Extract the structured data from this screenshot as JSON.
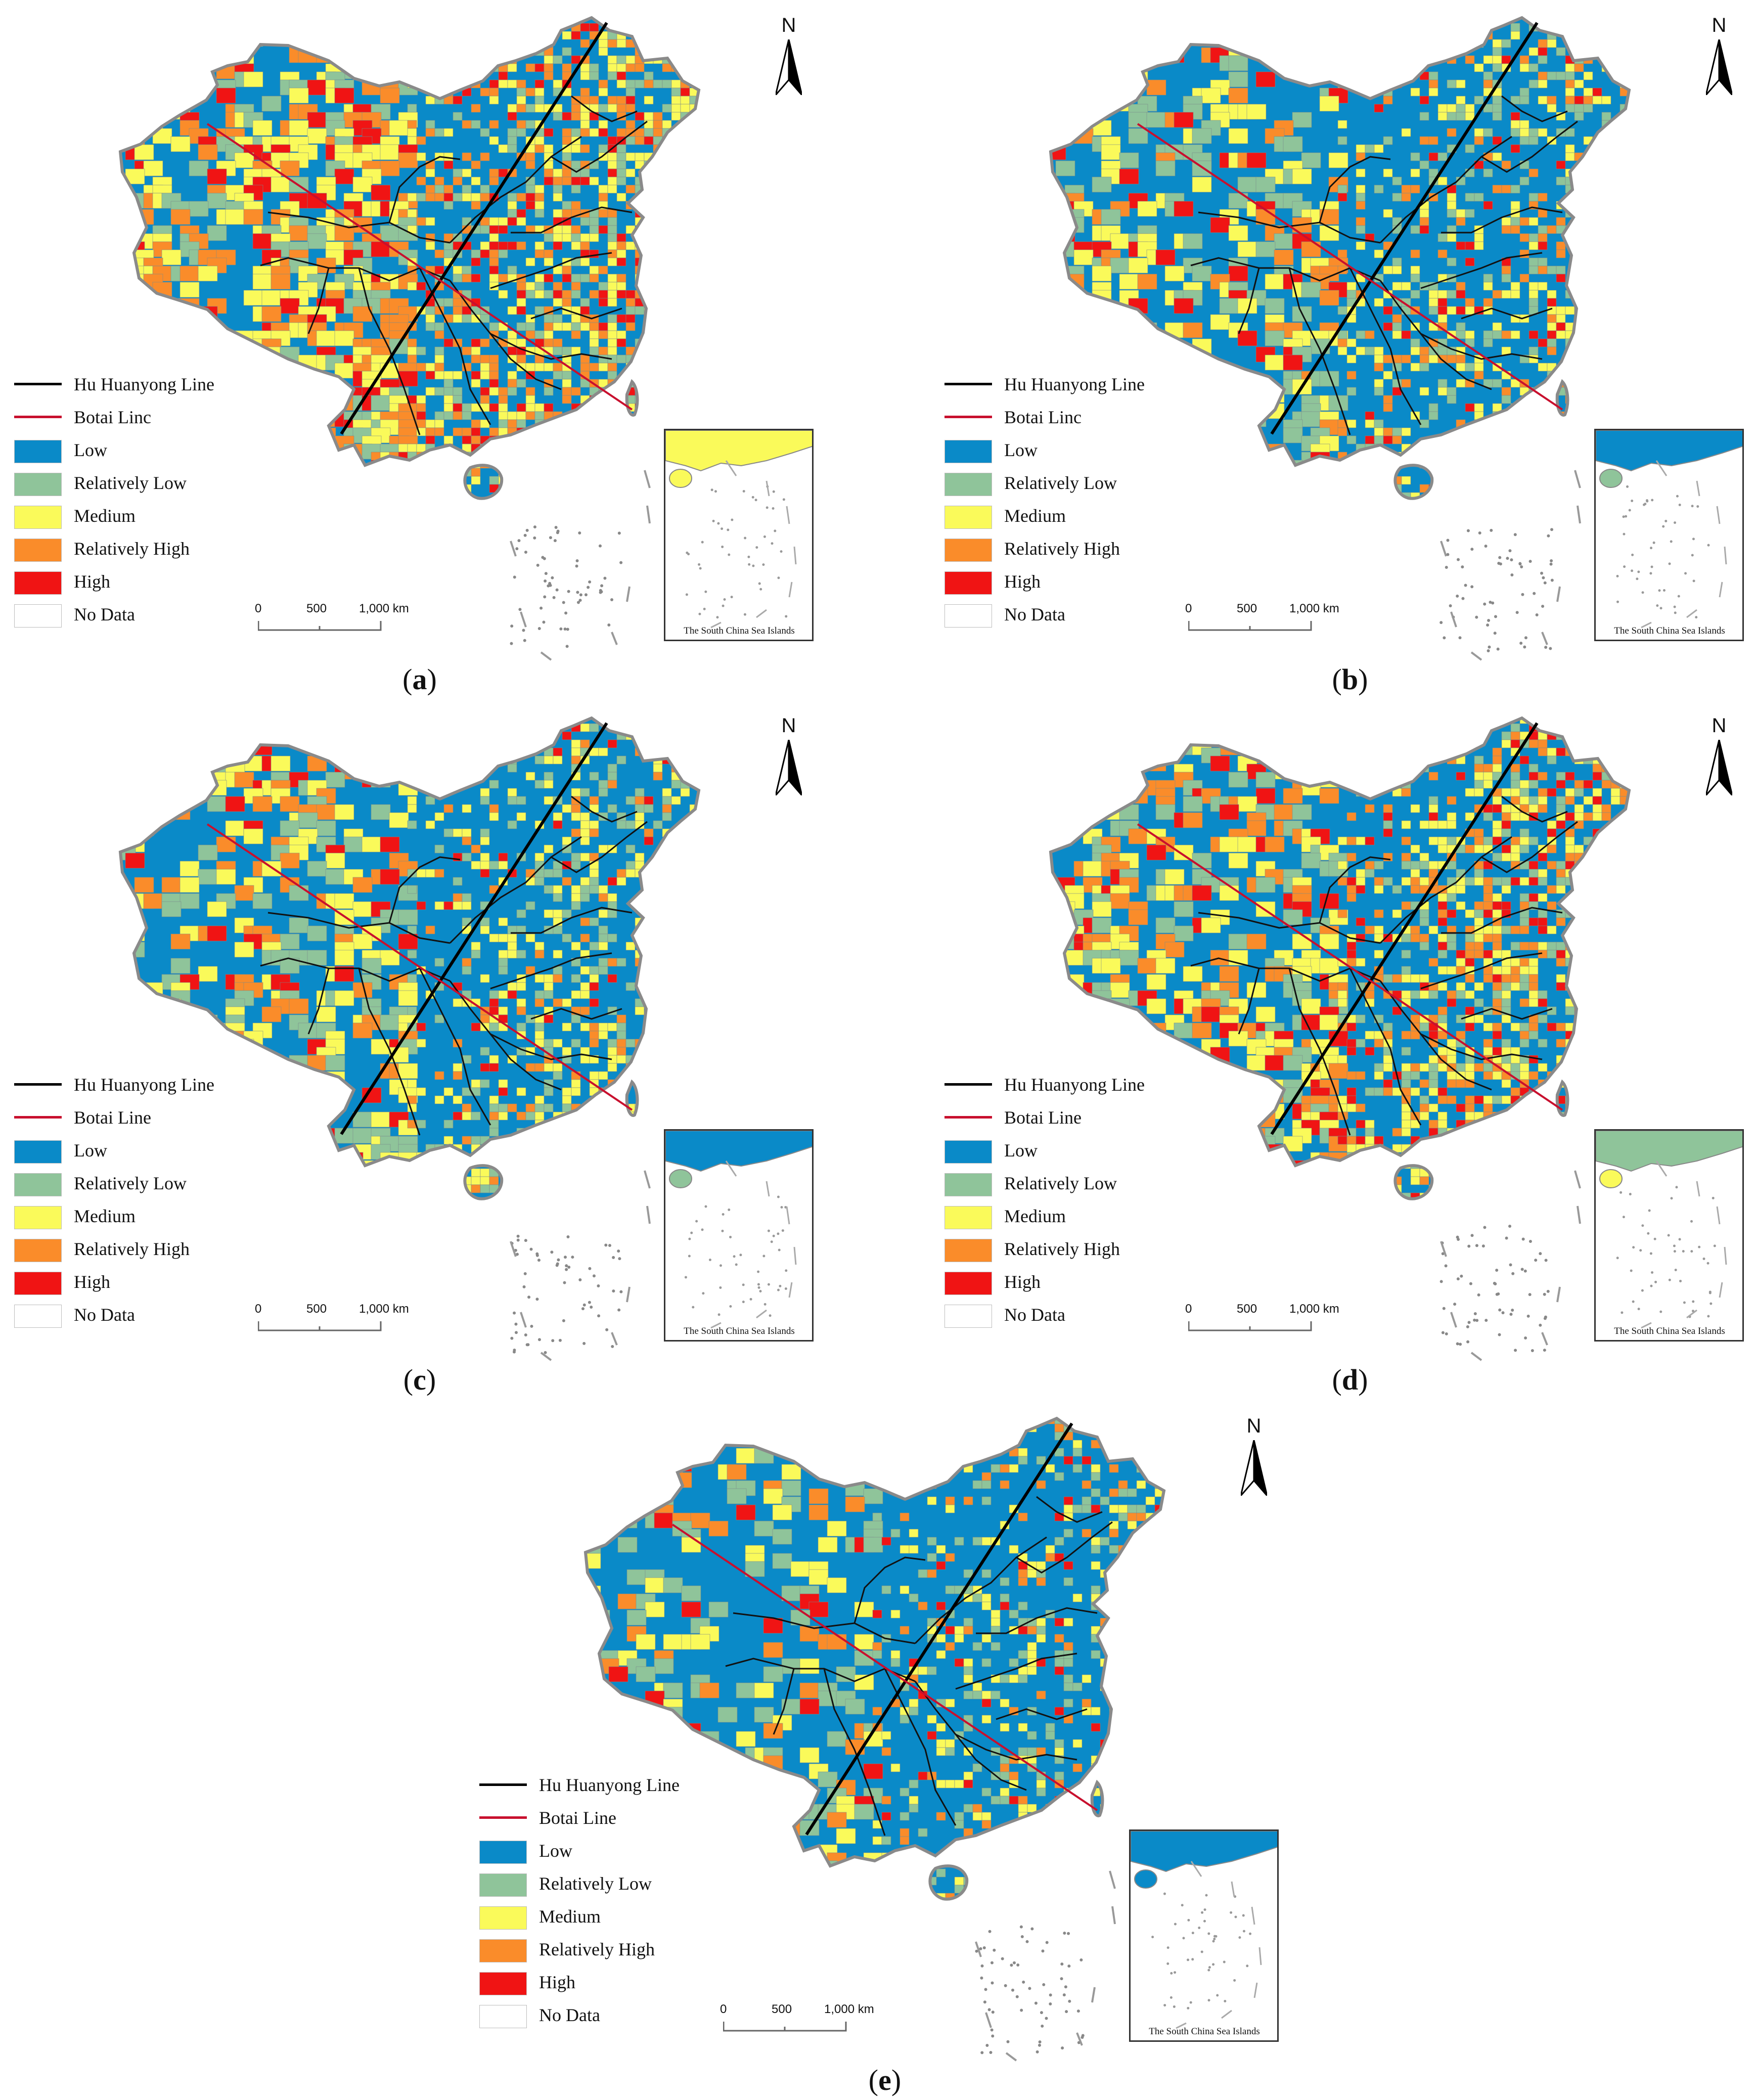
{
  "legend": {
    "lines": [
      {
        "label": "Hu Huanyong Line",
        "color": "#000000"
      },
      {
        "label": "Botai Line",
        "color": "#c8102e"
      }
    ],
    "classes": [
      {
        "label": "Low",
        "color": "#0a8ac8"
      },
      {
        "label": "Relatively Low",
        "color": "#8fc49a"
      },
      {
        "label": "Medium",
        "color": "#fafa5a"
      },
      {
        "label": "Relatively High",
        "color": "#fa8c2a"
      },
      {
        "label": "High",
        "color": "#f01414"
      },
      {
        "label": "No Data",
        "color": "#ffffff"
      }
    ]
  },
  "north_label": "N",
  "scale_ticks": [
    "0",
    "500",
    "1,000 km"
  ],
  "inset_label": "The South China Sea Islands",
  "panels": [
    {
      "id": "a",
      "letter": "a",
      "botai_label": "Botai Linc",
      "class_shares": {
        "Low": 0.34,
        "Relatively Low": 0.14,
        "Medium": 0.22,
        "Relatively High": 0.2,
        "High": 0.1
      }
    },
    {
      "id": "b",
      "letter": "b",
      "botai_label": "Botai Linc",
      "class_shares": {
        "Low": 0.55,
        "Relatively Low": 0.16,
        "Medium": 0.15,
        "Relatively High": 0.09,
        "High": 0.05
      }
    },
    {
      "id": "c",
      "letter": "c",
      "botai_label": "Botai Line",
      "class_shares": {
        "Low": 0.58,
        "Relatively Low": 0.14,
        "Medium": 0.16,
        "Relatively High": 0.08,
        "High": 0.04
      }
    },
    {
      "id": "d",
      "letter": "d",
      "botai_label": "Botai Line",
      "class_shares": {
        "Low": 0.4,
        "Relatively Low": 0.14,
        "Medium": 0.2,
        "Relatively High": 0.17,
        "High": 0.09
      }
    },
    {
      "id": "e",
      "letter": "e",
      "botai_label": "Botai Line",
      "class_shares": {
        "Low": 0.7,
        "Relatively Low": 0.1,
        "Medium": 0.11,
        "Relatively High": 0.06,
        "High": 0.03
      }
    }
  ]
}
